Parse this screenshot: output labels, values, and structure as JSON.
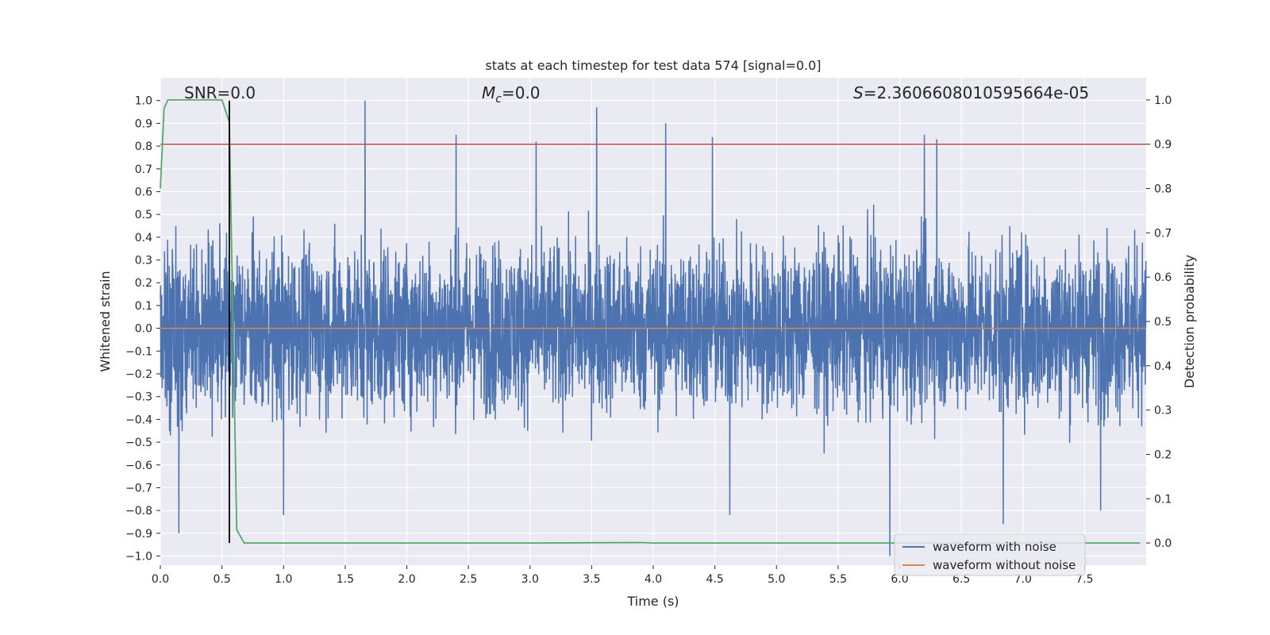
{
  "chart_data": {
    "type": "line",
    "title": "stats at each timestep for test data 574 [signal=0.0]",
    "xlabel": "Time (s)",
    "ylabel": "Whitened strain",
    "ylabel_right": "Detection probability",
    "xlim": [
      0.0,
      8.0
    ],
    "ylim": [
      -1.04,
      1.1
    ],
    "ylim_right": [
      -0.05,
      1.05
    ],
    "x_ticks": [
      "0.0",
      "0.5",
      "1.0",
      "1.5",
      "2.0",
      "2.5",
      "3.0",
      "3.5",
      "4.0",
      "4.5",
      "5.0",
      "5.5",
      "6.0",
      "6.5",
      "7.0",
      "7.5"
    ],
    "y_ticks": [
      "1.0",
      "0.9",
      "0.8",
      "0.7",
      "0.6",
      "0.5",
      "0.4",
      "0.3",
      "0.2",
      "0.1",
      "0.0",
      "−0.1",
      "−0.2",
      "−0.3",
      "−0.4",
      "−0.5",
      "−0.6",
      "−0.7",
      "−0.8",
      "−0.9",
      "−1.0"
    ],
    "y_ticks_right": [
      "1.0",
      "0.9",
      "0.8",
      "0.7",
      "0.6",
      "0.5",
      "0.4",
      "0.3",
      "0.2",
      "0.1",
      "0.0"
    ],
    "grid": true,
    "annotations": {
      "snr": "SNR=0.0",
      "mc_symbol": "M",
      "mc_sub": "c",
      "mc_value": "=0.0",
      "s_symbol": "S",
      "s_value": "=2.3606608010595664e-05"
    },
    "threshold_right": 0.9,
    "marker_time": 0.56,
    "series": [
      {
        "name": "waveform with noise",
        "color": "#4c72b0",
        "axis": "left",
        "duration": 8.0,
        "amplitude_band": [
          -0.55,
          0.55
        ],
        "peaks": [
          {
            "t": 1.66,
            "v": 1.0
          },
          {
            "t": 3.54,
            "v": 0.97
          },
          {
            "t": 4.1,
            "v": 0.9
          },
          {
            "t": 6.2,
            "v": 0.85
          },
          {
            "t": 2.4,
            "v": 0.85
          },
          {
            "t": 4.48,
            "v": 0.84
          },
          {
            "t": 6.3,
            "v": 0.83
          },
          {
            "t": 3.05,
            "v": 0.82
          },
          {
            "t": 5.92,
            "v": -1.0
          },
          {
            "t": 6.84,
            "v": -0.86
          },
          {
            "t": 0.15,
            "v": -0.9
          },
          {
            "t": 4.62,
            "v": -0.82
          },
          {
            "t": 1.0,
            "v": -0.82
          },
          {
            "t": 7.63,
            "v": -0.8
          }
        ]
      },
      {
        "name": "waveform without noise",
        "color": "#dd8452",
        "axis": "left",
        "x": [
          0.0,
          8.0
        ],
        "y": [
          0.0,
          0.0
        ]
      },
      {
        "name": "detection probability",
        "color": "#55a868",
        "axis": "right",
        "x": [
          0.0,
          0.03,
          0.06,
          0.1,
          0.2,
          0.3,
          0.4,
          0.5,
          0.56,
          0.62,
          0.68,
          0.8,
          1.5,
          3.0,
          3.9,
          4.0,
          6.0,
          7.95
        ],
        "y": [
          0.8,
          0.98,
          1.0,
          1.0,
          1.0,
          1.0,
          1.0,
          1.0,
          0.95,
          0.03,
          -0.0,
          0.0,
          0.0,
          0.0,
          0.001,
          0.0,
          0.0,
          0.0
        ]
      }
    ],
    "legend": {
      "position": "lower-right",
      "entries": [
        {
          "label": "waveform with noise",
          "color": "#4c72b0"
        },
        {
          "label": "waveform without noise",
          "color": "#dd8452"
        }
      ]
    },
    "threshold_color": "#c44e52",
    "marker_color": "#000000"
  }
}
